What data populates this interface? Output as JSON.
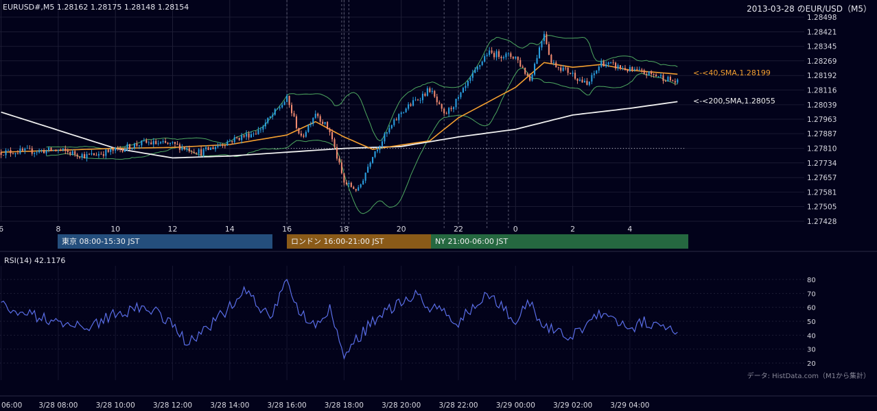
{
  "header": {
    "symbol_ohlc": "EURUSD#,M5 1.28162 1.28175 1.28148 1.28154",
    "title_right": "2013-03-28 のEUR/USD（M5）"
  },
  "rsi_panel": {
    "label": "RSI(14) 42.1176",
    "credit": "データ: HistData.com（M1から集計）"
  },
  "ma_labels": {
    "sma40": "<-<40,SMA,1.28199",
    "sma200": "<-<200,SMA,1.28055"
  },
  "sessions": [
    {
      "label": "東京 08:00-15:30 JST",
      "color": "#244e7c"
    },
    {
      "label": "ロンドン 16:00-21:00 JST",
      "color": "#8a5a18"
    },
    {
      "label": "NY 21:00-06:00 JST",
      "color": "#256840"
    }
  ],
  "colors": {
    "background": "#02021a",
    "bull_candle": "#2a9fe0",
    "bear_candle": "#f08a70",
    "sma40": "#f5a030",
    "sma200": "#f0f0f0",
    "bollinger": "#4ea860",
    "rsi": "#5a6ee8"
  },
  "chart_data": [
    {
      "type": "candlestick",
      "title": "",
      "y_ticks": [
        "1.28498",
        "1.28421",
        "1.28345",
        "1.28269",
        "1.28192",
        "1.28116",
        "1.28039",
        "1.27963",
        "1.27887",
        "1.27810",
        "1.27734",
        "1.27657",
        "1.27581",
        "1.27505",
        "1.27428"
      ],
      "ylim": [
        1.27428,
        1.28498
      ],
      "x_hour_ticks": [
        "6",
        "8",
        "10",
        "12",
        "14",
        "16",
        "18",
        "20",
        "22",
        "0",
        "2",
        "4"
      ],
      "last_close": 1.28154,
      "reference_level": 1.2781,
      "series": [
        {
          "name": "40,SMA",
          "last_value": 1.28199,
          "key_points": [
            [
              "3/28 06:00",
              1.2779
            ],
            [
              "3/28 10:00",
              1.2781
            ],
            [
              "3/28 12:00",
              1.27815
            ],
            [
              "3/28 14:00",
              1.2783
            ],
            [
              "3/28 16:00",
              1.2788
            ],
            [
              "3/28 17:00",
              1.2795
            ],
            [
              "3/28 18:00",
              1.2787
            ],
            [
              "3/28 19:00",
              1.27805
            ],
            [
              "3/28 21:00",
              1.2785
            ],
            [
              "3/28 22:00",
              1.2797
            ],
            [
              "3/28 23:00",
              1.2805
            ],
            [
              "3/29 00:00",
              1.2813
            ],
            [
              "3/29 01:00",
              1.2826
            ],
            [
              "3/29 02:00",
              1.28235
            ],
            [
              "3/29 03:00",
              1.2825
            ],
            [
              "3/29 04:00",
              1.2822
            ],
            [
              "3/29 05:40",
              1.28199
            ]
          ]
        },
        {
          "name": "200,SMA",
          "last_value": 1.28055,
          "key_points": [
            [
              "3/28 06:00",
              1.28
            ],
            [
              "3/28 10:00",
              1.2781
            ],
            [
              "3/28 12:00",
              1.2776
            ],
            [
              "3/28 14:00",
              1.2777
            ],
            [
              "3/28 16:00",
              1.2779
            ],
            [
              "3/28 18:00",
              1.2781
            ],
            [
              "3/28 20:00",
              1.2782
            ],
            [
              "3/28 22:00",
              1.2787
            ],
            [
              "3/29 00:00",
              1.2791
            ],
            [
              "3/29 02:00",
              1.27985
            ],
            [
              "3/29 04:00",
              1.2802
            ],
            [
              "3/29 05:40",
              1.28055
            ]
          ]
        },
        {
          "name": "Price",
          "key_points": [
            [
              "3/28 06:00",
              1.2779
            ],
            [
              "3/28 08:00",
              1.278
            ],
            [
              "3/28 09:00",
              1.2777
            ],
            [
              "3/28 10:00",
              1.278
            ],
            [
              "3/28 11:00",
              1.2784
            ],
            [
              "3/28 12:00",
              1.2783
            ],
            [
              "3/28 13:00",
              1.2779
            ],
            [
              "3/28 14:00",
              1.2785
            ],
            [
              "3/28 15:00",
              1.279
            ],
            [
              "3/28 16:00",
              1.2807
            ],
            [
              "3/28 16:30",
              1.2786
            ],
            [
              "3/28 17:00",
              1.28
            ],
            [
              "3/28 17:30",
              1.279
            ],
            [
              "3/28 18:00",
              1.2763
            ],
            [
              "3/28 18:30",
              1.2759
            ],
            [
              "3/28 19:00",
              1.2778
            ],
            [
              "3/28 20:00",
              1.28
            ],
            [
              "3/28 21:00",
              1.2812
            ],
            [
              "3/28 21:30",
              1.2798
            ],
            [
              "3/28 22:00",
              1.2807
            ],
            [
              "3/28 23:00",
              1.2831
            ],
            [
              "3/29 00:00",
              1.2829
            ],
            [
              "3/29 00:30",
              1.2817
            ],
            [
              "3/29 01:00",
              1.2842
            ],
            [
              "3/29 01:15",
              1.2826
            ],
            [
              "3/29 02:00",
              1.282
            ],
            [
              "3/29 02:30",
              1.2814
            ],
            [
              "3/29 03:00",
              1.2826
            ],
            [
              "3/29 04:00",
              1.2822
            ],
            [
              "3/29 05:00",
              1.2819
            ],
            [
              "3/29 05:40",
              1.28154
            ]
          ]
        }
      ]
    },
    {
      "type": "line",
      "title": "RSI(14)",
      "last_value": 42.1176,
      "y_ticks": [
        "80",
        "70",
        "60",
        "50",
        "40",
        "30",
        "20"
      ],
      "ylim": [
        20,
        80
      ],
      "key_points": [
        [
          "3/28 06:00",
          62
        ],
        [
          "3/28 07:00",
          55
        ],
        [
          "3/28 08:00",
          50
        ],
        [
          "3/28 09:00",
          45
        ],
        [
          "3/28 10:00",
          55
        ],
        [
          "3/28 11:00",
          60
        ],
        [
          "3/28 12:00",
          50
        ],
        [
          "3/28 12:30",
          35
        ],
        [
          "3/28 13:00",
          40
        ],
        [
          "3/28 14:00",
          60
        ],
        [
          "3/28 14:30",
          75
        ],
        [
          "3/28 15:00",
          60
        ],
        [
          "3/28 15:30",
          55
        ],
        [
          "3/28 16:00",
          79
        ],
        [
          "3/28 16:30",
          55
        ],
        [
          "3/28 17:00",
          48
        ],
        [
          "3/28 17:30",
          60
        ],
        [
          "3/28 18:00",
          25
        ],
        [
          "3/28 18:30",
          38
        ],
        [
          "3/28 19:00",
          50
        ],
        [
          "3/28 20:00",
          65
        ],
        [
          "3/28 20:30",
          68
        ],
        [
          "3/28 21:00",
          60
        ],
        [
          "3/28 22:00",
          50
        ],
        [
          "3/28 23:00",
          70
        ],
        [
          "3/29 00:00",
          50
        ],
        [
          "3/29 00:30",
          65
        ],
        [
          "3/29 01:00",
          45
        ],
        [
          "3/29 02:00",
          40
        ],
        [
          "3/29 03:00",
          55
        ],
        [
          "3/29 04:00",
          45
        ],
        [
          "3/29 04:30",
          50
        ],
        [
          "3/29 05:00",
          45
        ],
        [
          "3/29 05:40",
          42
        ]
      ]
    }
  ],
  "time_axis": [
    "06:00",
    "3/28 08:00",
    "3/28 10:00",
    "3/28 12:00",
    "3/28 14:00",
    "3/28 16:00",
    "3/28 18:00",
    "3/28 20:00",
    "3/28 22:00",
    "3/29 00:00",
    "3/29 02:00",
    "3/29 04:00"
  ]
}
